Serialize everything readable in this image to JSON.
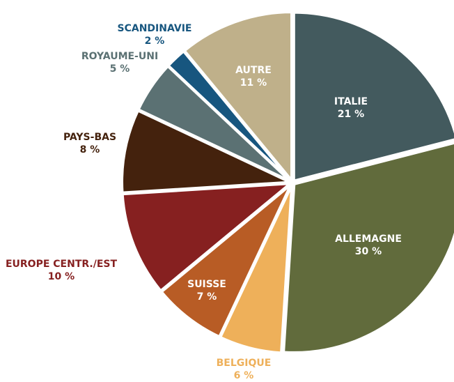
{
  "chart_data": {
    "type": "pie",
    "categories": [
      "ITALIE",
      "ALLEMAGNE",
      "BELGIQUE",
      "SUISSE",
      "EUROPE CENTR./EST",
      "PAYS-BAS",
      "ROYAUME-UNI",
      "SCANDINAVIE",
      "AUTRE"
    ],
    "values": [
      21,
      30,
      6,
      7,
      10,
      8,
      5,
      2,
      11
    ],
    "value_labels": [
      "21 %",
      "30 %",
      "6 %",
      "7 %",
      "10 %",
      "8 %",
      "5 %",
      "2 %",
      "11 %"
    ],
    "colors": [
      "#435a5e",
      "#616b3c",
      "#eeb05a",
      "#b85c25",
      "#862020",
      "#44220d",
      "#5b7173",
      "#17567f",
      "#bfb08a"
    ]
  }
}
